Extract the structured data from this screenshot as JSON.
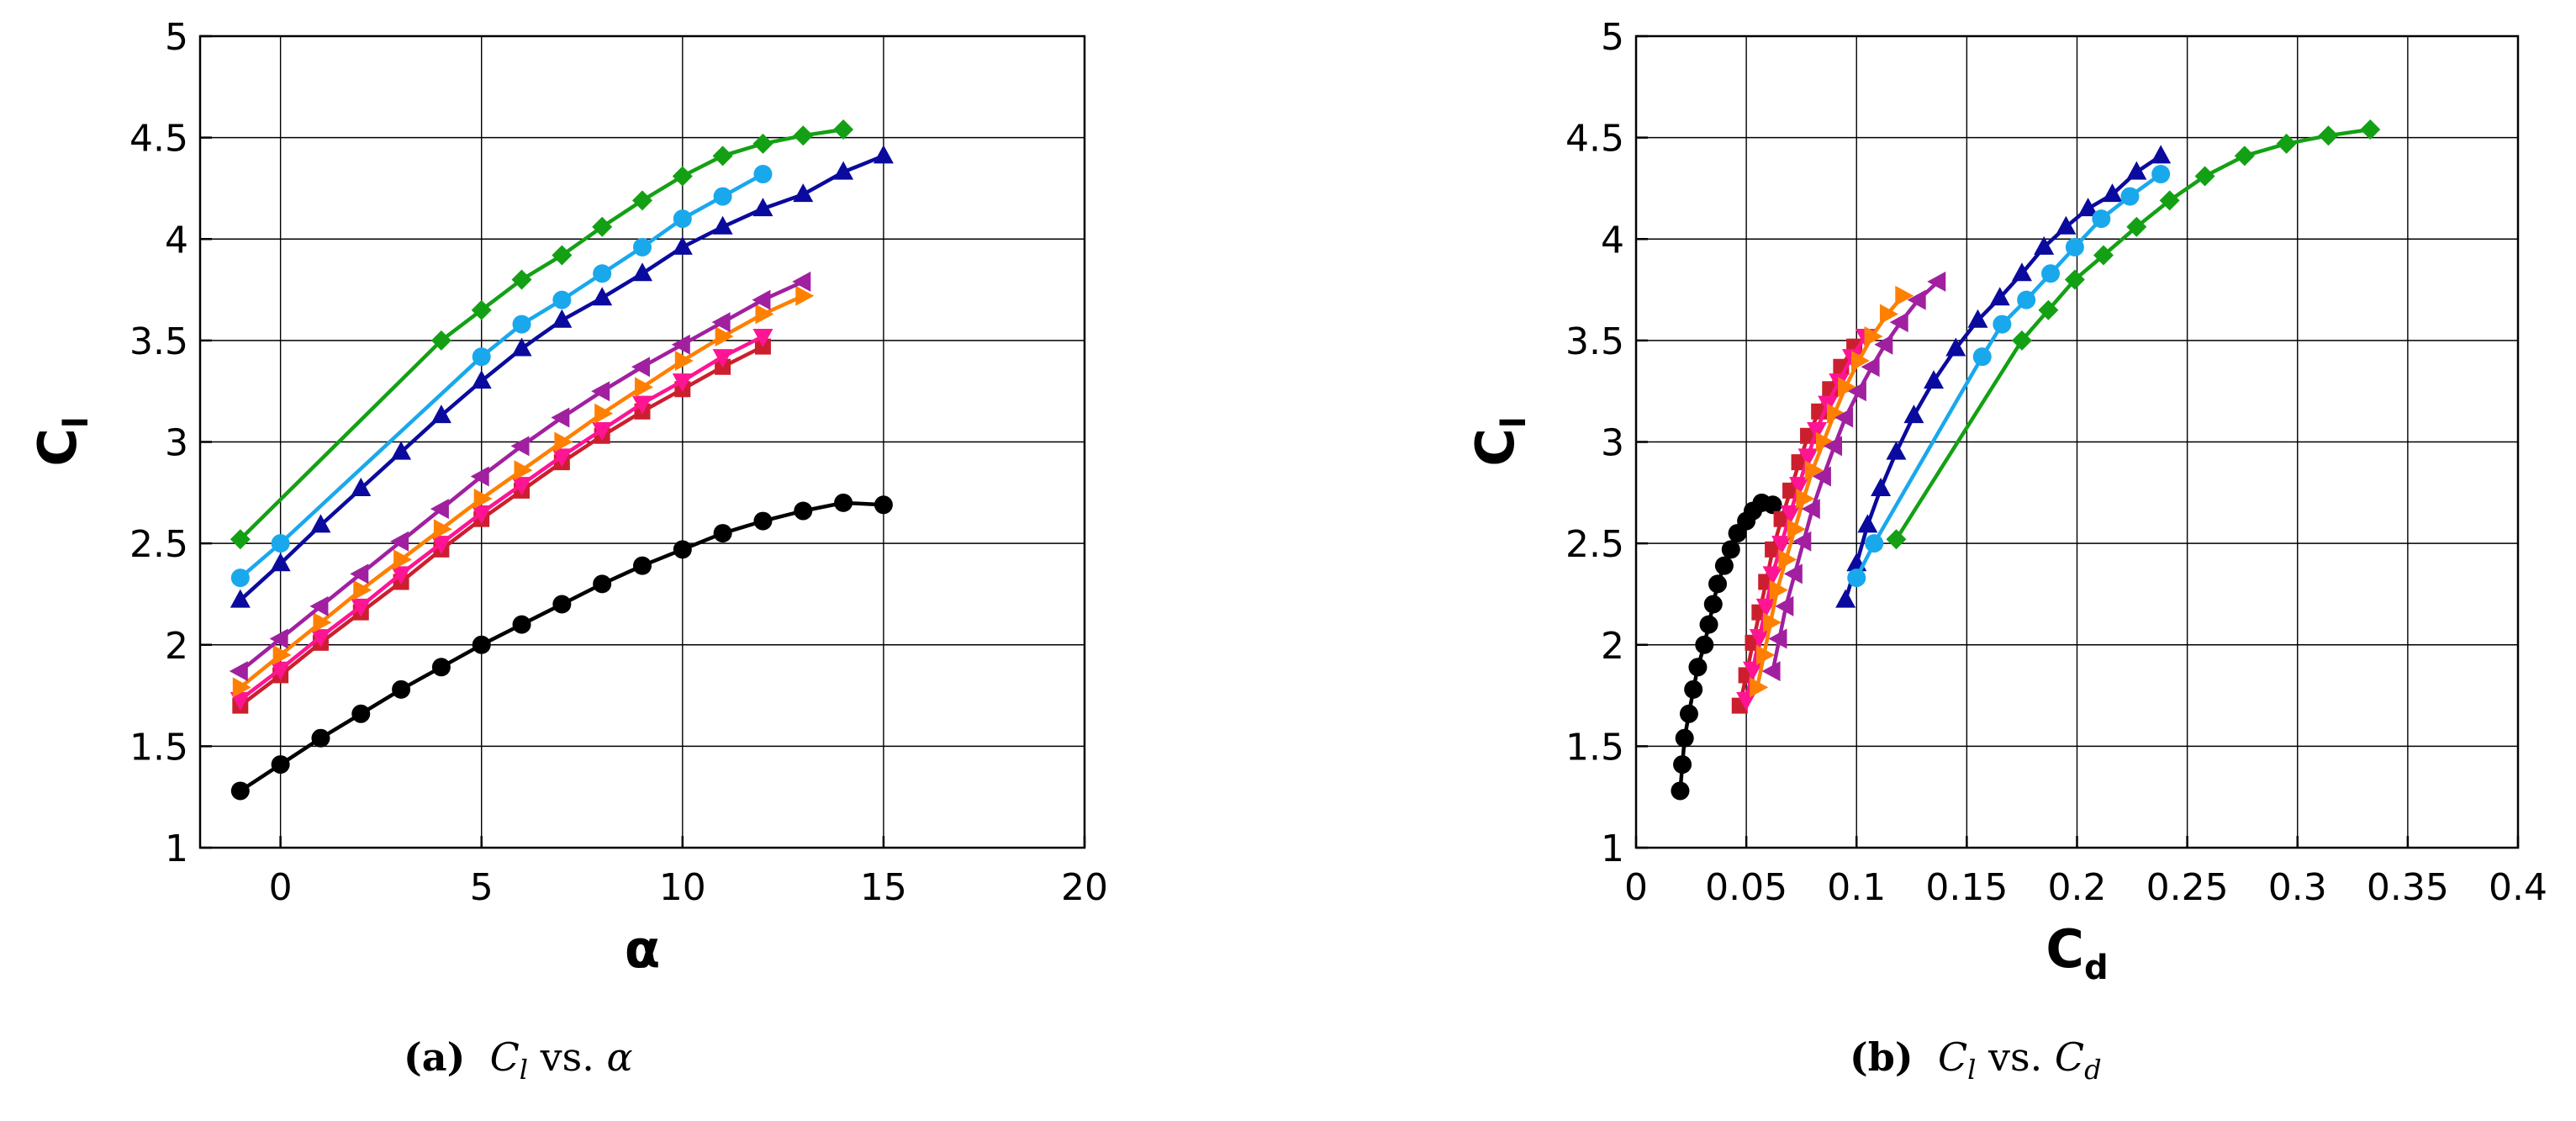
{
  "figure": {
    "panels": [
      {
        "caption": {
          "tag": "(a)",
          "var1": "C",
          "sub1": "l",
          "vs": "vs.",
          "var2": "α",
          "sub2": ""
        }
      },
      {
        "caption": {
          "tag": "(b)",
          "var1": "C",
          "sub1": "l",
          "vs": "vs.",
          "var2": "C",
          "sub2": "d"
        }
      }
    ]
  },
  "chart_data": [
    {
      "type": "line",
      "title": "(a) Cl vs. α",
      "xlabel": "α",
      "ylabel": {
        "main": "C",
        "sub": "l"
      },
      "xlim": [
        -2,
        20
      ],
      "ylim": [
        1,
        5
      ],
      "xticks": [
        0,
        5,
        10,
        15,
        20
      ],
      "yticks": [
        1,
        1.5,
        2,
        2.5,
        3,
        3.5,
        4,
        4.5,
        5
      ],
      "xtick_labels": [
        "0",
        "5",
        "10",
        "15",
        "20"
      ],
      "ytick_labels": [
        "1",
        "1.5",
        "2",
        "2.5",
        "3",
        "3.5",
        "4",
        "4.5",
        "5"
      ],
      "grid": true,
      "series": [
        {
          "name": "black-circle",
          "color": "#000000",
          "marker": "circle",
          "x": [
            -1,
            0,
            1,
            2,
            3,
            4,
            5,
            6,
            7,
            8,
            9,
            10,
            11,
            12,
            13,
            14,
            15
          ],
          "y": [
            1.28,
            1.41,
            1.54,
            1.66,
            1.78,
            1.89,
            2.0,
            2.1,
            2.2,
            2.3,
            2.39,
            2.47,
            2.55,
            2.61,
            2.66,
            2.7,
            2.69
          ]
        },
        {
          "name": "red-square",
          "color": "#cc1f2e",
          "marker": "square",
          "x": [
            -1,
            0,
            1,
            2,
            3,
            4,
            5,
            6,
            7,
            8,
            9,
            10,
            11,
            12
          ],
          "y": [
            1.7,
            1.85,
            2.01,
            2.16,
            2.31,
            2.47,
            2.62,
            2.76,
            2.9,
            3.03,
            3.15,
            3.26,
            3.37,
            3.47
          ]
        },
        {
          "name": "pink-triangle-down",
          "color": "#ff1493",
          "marker": "triangle-down",
          "x": [
            -1,
            0,
            1,
            2,
            3,
            4,
            5,
            6,
            7,
            8,
            9,
            10,
            11,
            12
          ],
          "y": [
            1.73,
            1.88,
            2.04,
            2.19,
            2.35,
            2.5,
            2.65,
            2.79,
            2.93,
            3.06,
            3.19,
            3.3,
            3.42,
            3.52
          ]
        },
        {
          "name": "orange-triangle-right",
          "color": "#ff8000",
          "marker": "triangle-right",
          "x": [
            -1,
            0,
            1,
            2,
            3,
            4,
            5,
            6,
            7,
            8,
            9,
            10,
            11,
            12,
            13
          ],
          "y": [
            1.79,
            1.95,
            2.11,
            2.27,
            2.42,
            2.57,
            2.72,
            2.86,
            3.0,
            3.14,
            3.27,
            3.4,
            3.52,
            3.63,
            3.72
          ]
        },
        {
          "name": "purple-triangle-left",
          "color": "#a020a0",
          "marker": "triangle-left",
          "x": [
            -1,
            0,
            1,
            2,
            3,
            4,
            5,
            6,
            7,
            8,
            9,
            10,
            11,
            12,
            13
          ],
          "y": [
            1.87,
            2.03,
            2.19,
            2.35,
            2.51,
            2.67,
            2.83,
            2.98,
            3.12,
            3.25,
            3.37,
            3.48,
            3.59,
            3.7,
            3.79
          ]
        },
        {
          "name": "navy-triangle-up",
          "color": "#0a0a9e",
          "marker": "triangle-up",
          "x": [
            -1,
            0,
            1,
            2,
            3,
            4,
            5,
            6,
            7,
            8,
            9,
            10,
            11,
            12,
            13,
            14,
            15
          ],
          "y": [
            2.22,
            2.4,
            2.59,
            2.77,
            2.95,
            3.13,
            3.3,
            3.46,
            3.6,
            3.71,
            3.83,
            3.96,
            4.06,
            4.15,
            4.22,
            4.33,
            4.41
          ]
        },
        {
          "name": "cyan-circle",
          "color": "#19a8ec",
          "marker": "circle",
          "x": [
            -1,
            0,
            5,
            6,
            7,
            8,
            9,
            10,
            11,
            12
          ],
          "y": [
            2.33,
            2.5,
            3.42,
            3.58,
            3.7,
            3.83,
            3.96,
            4.1,
            4.21,
            4.32
          ]
        },
        {
          "name": "green-diamond",
          "color": "#14a014",
          "marker": "diamond",
          "x": [
            -1,
            4,
            5,
            6,
            7,
            8,
            9,
            10,
            11,
            12,
            13,
            14
          ],
          "y": [
            2.52,
            3.5,
            3.65,
            3.8,
            3.92,
            4.06,
            4.19,
            4.31,
            4.41,
            4.47,
            4.51,
            4.54
          ]
        }
      ]
    },
    {
      "type": "line",
      "title": "(b) Cl vs. Cd",
      "xlabel": {
        "main": "C",
        "sub": "d"
      },
      "ylabel": {
        "main": "C",
        "sub": "l"
      },
      "xlim": [
        0,
        0.4
      ],
      "ylim": [
        1,
        5
      ],
      "xticks": [
        0,
        0.05,
        0.1,
        0.15,
        0.2,
        0.25,
        0.3,
        0.35,
        0.4
      ],
      "yticks": [
        1,
        1.5,
        2,
        2.5,
        3,
        3.5,
        4,
        4.5,
        5
      ],
      "xtick_labels": [
        "0",
        "0.05",
        "0.1",
        "0.15",
        "0.2",
        "0.25",
        "0.3",
        "0.35",
        "0.4"
      ],
      "ytick_labels": [
        "1",
        "1.5",
        "2",
        "2.5",
        "3",
        "3.5",
        "4",
        "4.5",
        "5"
      ],
      "grid": true,
      "series": [
        {
          "name": "black-circle",
          "color": "#000000",
          "marker": "circle",
          "x": [
            0.02,
            0.021,
            0.022,
            0.024,
            0.026,
            0.028,
            0.031,
            0.033,
            0.035,
            0.037,
            0.04,
            0.043,
            0.046,
            0.05,
            0.053,
            0.057,
            0.062
          ],
          "y": [
            1.28,
            1.41,
            1.54,
            1.66,
            1.78,
            1.89,
            2.0,
            2.1,
            2.2,
            2.3,
            2.39,
            2.47,
            2.55,
            2.61,
            2.66,
            2.7,
            2.69
          ]
        },
        {
          "name": "red-square",
          "color": "#cc1f2e",
          "marker": "square",
          "x": [
            0.047,
            0.05,
            0.053,
            0.056,
            0.059,
            0.062,
            0.066,
            0.07,
            0.074,
            0.078,
            0.083,
            0.088,
            0.093,
            0.099
          ],
          "y": [
            1.7,
            1.85,
            2.01,
            2.16,
            2.31,
            2.47,
            2.62,
            2.76,
            2.9,
            3.03,
            3.15,
            3.26,
            3.37,
            3.47
          ]
        },
        {
          "name": "pink-triangle-down",
          "color": "#ff1493",
          "marker": "triangle-down",
          "x": [
            0.05,
            0.053,
            0.056,
            0.059,
            0.062,
            0.066,
            0.07,
            0.074,
            0.078,
            0.082,
            0.087,
            0.092,
            0.098,
            0.104
          ],
          "y": [
            1.73,
            1.88,
            2.04,
            2.19,
            2.35,
            2.5,
            2.65,
            2.79,
            2.93,
            3.06,
            3.19,
            3.3,
            3.42,
            3.52
          ]
        },
        {
          "name": "orange-triangle-right",
          "color": "#ff8000",
          "marker": "triangle-right",
          "x": [
            0.055,
            0.058,
            0.061,
            0.064,
            0.068,
            0.072,
            0.076,
            0.08,
            0.085,
            0.09,
            0.095,
            0.101,
            0.107,
            0.114,
            0.121
          ],
          "y": [
            1.79,
            1.95,
            2.11,
            2.27,
            2.42,
            2.57,
            2.72,
            2.86,
            3.0,
            3.14,
            3.27,
            3.4,
            3.52,
            3.63,
            3.72
          ]
        },
        {
          "name": "purple-triangle-left",
          "color": "#a020a0",
          "marker": "triangle-left",
          "x": [
            0.062,
            0.065,
            0.068,
            0.072,
            0.076,
            0.08,
            0.085,
            0.09,
            0.095,
            0.101,
            0.107,
            0.113,
            0.12,
            0.128,
            0.137
          ],
          "y": [
            1.87,
            2.03,
            2.19,
            2.35,
            2.51,
            2.67,
            2.83,
            2.98,
            3.12,
            3.25,
            3.37,
            3.48,
            3.59,
            3.7,
            3.79
          ]
        },
        {
          "name": "navy-triangle-up",
          "color": "#0a0a9e",
          "marker": "triangle-up",
          "x": [
            0.095,
            0.1,
            0.105,
            0.111,
            0.118,
            0.126,
            0.135,
            0.145,
            0.155,
            0.165,
            0.175,
            0.185,
            0.195,
            0.205,
            0.216,
            0.227,
            0.238
          ],
          "y": [
            2.22,
            2.4,
            2.59,
            2.77,
            2.95,
            3.13,
            3.3,
            3.46,
            3.6,
            3.71,
            3.83,
            3.96,
            4.06,
            4.15,
            4.22,
            4.33,
            4.41
          ]
        },
        {
          "name": "cyan-circle",
          "color": "#19a8ec",
          "marker": "circle",
          "x": [
            0.1,
            0.108,
            0.157,
            0.166,
            0.177,
            0.188,
            0.199,
            0.211,
            0.224,
            0.238
          ],
          "y": [
            2.33,
            2.5,
            3.42,
            3.58,
            3.7,
            3.83,
            3.96,
            4.1,
            4.21,
            4.32
          ]
        },
        {
          "name": "green-diamond",
          "color": "#14a014",
          "marker": "diamond",
          "x": [
            0.118,
            0.175,
            0.187,
            0.199,
            0.212,
            0.227,
            0.242,
            0.258,
            0.276,
            0.295,
            0.314,
            0.333
          ],
          "y": [
            2.52,
            3.5,
            3.65,
            3.8,
            3.92,
            4.06,
            4.19,
            4.31,
            4.41,
            4.47,
            4.51,
            4.54
          ]
        }
      ]
    }
  ]
}
